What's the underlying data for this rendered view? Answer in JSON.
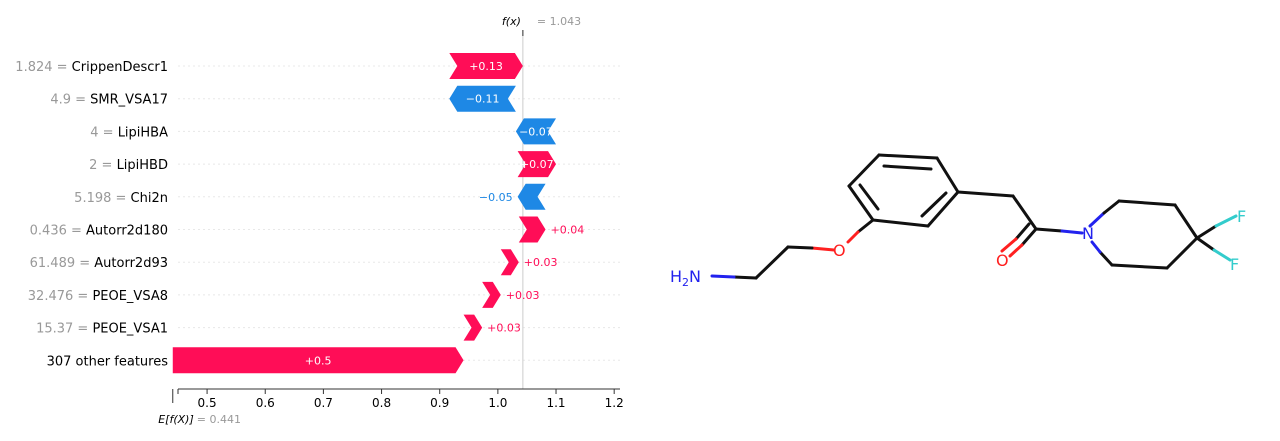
{
  "chart_data": {
    "type": "waterfall",
    "fx_label": "f(x)",
    "fx_value": "= 1.043",
    "fx": 1.043,
    "base_label": "E[f(X)]",
    "base_value": "= 0.441",
    "base": 0.441,
    "xlim": [
      0.45,
      1.21
    ],
    "ticks": [
      {
        "v": 0.5,
        "label": "0.5"
      },
      {
        "v": 0.6,
        "label": "0.6"
      },
      {
        "v": 0.7,
        "label": "0.7"
      },
      {
        "v": 0.8,
        "label": "0.8"
      },
      {
        "v": 0.9,
        "label": "0.9"
      },
      {
        "v": 1.0,
        "label": "1.0"
      },
      {
        "v": 1.1,
        "label": "1.1"
      },
      {
        "v": 1.2,
        "label": "1.2"
      }
    ],
    "features": [
      {
        "value": "1.824",
        "name": "CrippenDescr1",
        "start": 0.9165,
        "end": 1.043,
        "label": "+0.13",
        "label_pos": "inside"
      },
      {
        "value": "4.9",
        "name": "SMR_VSA17",
        "start": 1.031,
        "end": 0.9165,
        "label": "−0.11",
        "label_pos": "inside"
      },
      {
        "value": "4",
        "name": "LipiHBA",
        "start": 1.1,
        "end": 1.031,
        "label": "−0.07",
        "label_pos": "inside"
      },
      {
        "value": "2",
        "name": "LipiHBD",
        "start": 1.034,
        "end": 1.1,
        "label": "+0.07",
        "label_pos": "inside"
      },
      {
        "value": "5.198",
        "name": "Chi2n",
        "start": 1.082,
        "end": 1.034,
        "label": "−0.05",
        "label_pos": "left"
      },
      {
        "value": "0.436",
        "name": "Autorr2d180",
        "start": 1.036,
        "end": 1.082,
        "label": "+0.04",
        "label_pos": "right"
      },
      {
        "value": "61.489",
        "name": "Autorr2d93",
        "start": 1.005,
        "end": 1.036,
        "label": "+0.03",
        "label_pos": "right"
      },
      {
        "value": "32.476",
        "name": "PEOE_VSA8",
        "start": 0.973,
        "end": 1.005,
        "label": "+0.03",
        "label_pos": "right"
      },
      {
        "value": "15.37",
        "name": "PEOE_VSA1",
        "start": 0.941,
        "end": 0.973,
        "label": "+0.03",
        "label_pos": "right"
      },
      {
        "value": "",
        "name": "307 other features",
        "start": 0.441,
        "end": 0.941,
        "label": "+0.5",
        "label_pos": "inside"
      }
    ]
  },
  "molecule": {
    "atoms": [
      "H2N",
      "O",
      "O",
      "N",
      "F",
      "F"
    ]
  },
  "colors": {
    "positive": "#ff0d57",
    "negative": "#1e88e5",
    "bond": "#111111",
    "nitrogen": "#2222ee",
    "oxygen": "#ff2020",
    "fluorine": "#33cccc",
    "muted": "#999999"
  }
}
